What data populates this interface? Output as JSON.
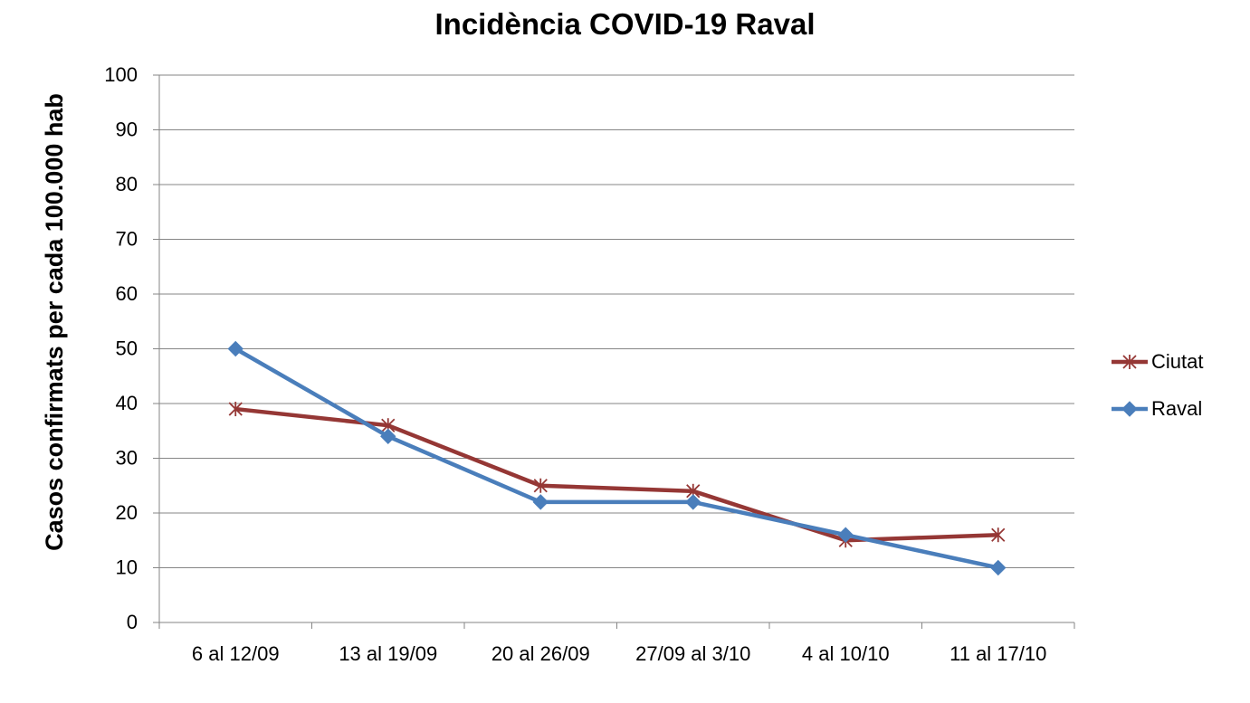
{
  "chart_data": {
    "type": "line",
    "title": "Incidència COVID-19 Raval",
    "y_label": "Casos confirmats per cada 100.000 hab",
    "categories": [
      "6 al 12/09",
      "13 al 19/09",
      "20 al 26/09",
      "27/09 al 3/10",
      "4 al 10/10",
      "11 al 17/10"
    ],
    "series": [
      {
        "name": "Ciutat",
        "color": "#953735",
        "marker": "asterisk",
        "values": [
          39,
          36,
          25,
          24,
          15,
          16
        ]
      },
      {
        "name": "Raval",
        "color": "#4a7ebb",
        "marker": "diamond",
        "values": [
          50,
          34,
          22,
          22,
          16,
          10
        ]
      }
    ],
    "ylim": [
      0,
      100
    ],
    "yticks": [
      0,
      10,
      20,
      30,
      40,
      50,
      60,
      70,
      80,
      90,
      100
    ],
    "grid": true,
    "legend": "right"
  }
}
